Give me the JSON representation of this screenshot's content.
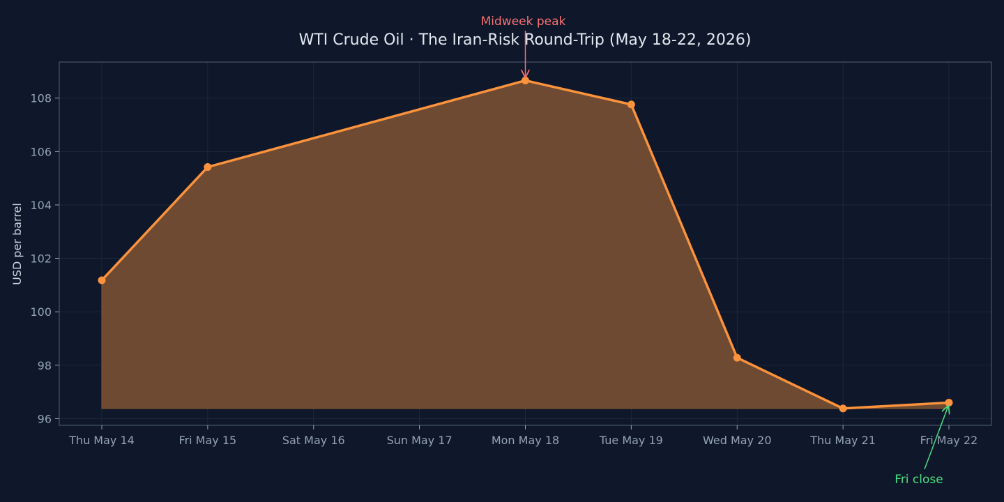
{
  "chart_data": {
    "type": "area",
    "title": "WTI Crude Oil · The Iran-Risk Round-Trip (May 18-22, 2026)",
    "xlabel": "",
    "ylabel": "USD per barrel",
    "categories": [
      "Thu May 14",
      "Fri May 15",
      "Sat May 16",
      "Sun May 17",
      "Mon May 18",
      "Tue May 19",
      "Wed May 20",
      "Thu May 21",
      "Fri May 22"
    ],
    "yticks": [
      96,
      98,
      100,
      102,
      104,
      106,
      108
    ],
    "ylim": [
      95.75,
      109.35
    ],
    "grid": true,
    "series": [
      {
        "name": "",
        "color": "#fb923c",
        "fill": "#6d4a31",
        "points": [
          {
            "x": "Thu May 14",
            "y": 101.18
          },
          {
            "x": "Fri May 15",
            "y": 105.42
          },
          {
            "x": "Mon May 18",
            "y": 108.66
          },
          {
            "x": "Tue May 19",
            "y": 107.76
          },
          {
            "x": "Wed May 20",
            "y": 98.28
          },
          {
            "x": "Thu May 21",
            "y": 96.38
          },
          {
            "x": "Fri May 22",
            "y": 96.6
          }
        ]
      }
    ],
    "annotations": [
      {
        "text": "Midweek peak",
        "x": "Mon May 18",
        "y": 108.66,
        "color": "#f87171"
      },
      {
        "text": "Fri close",
        "x": "Fri May 22",
        "y": 96.6,
        "color": "#4ade80"
      }
    ]
  }
}
